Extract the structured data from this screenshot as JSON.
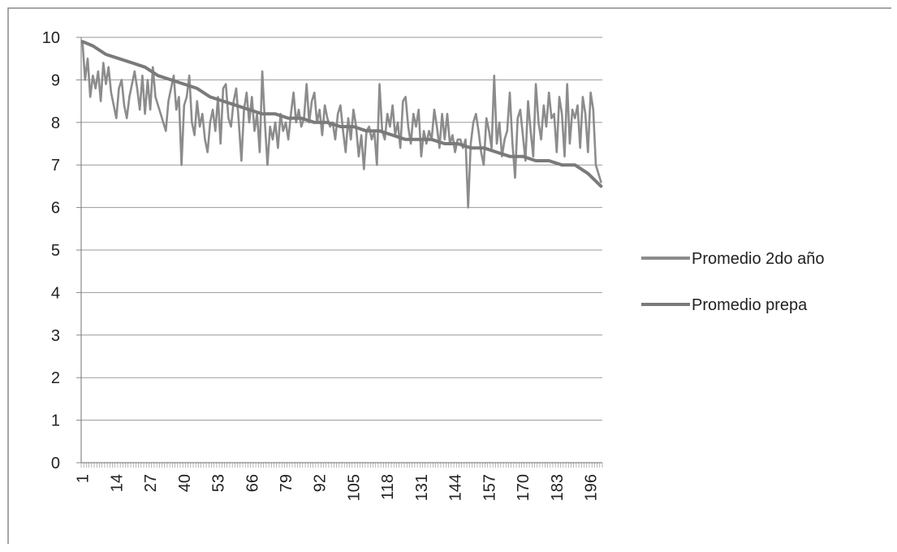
{
  "chart_data": {
    "type": "line",
    "title": "",
    "xlabel": "",
    "ylabel": "",
    "ylim": [
      0,
      10
    ],
    "y_ticks": [
      "0",
      "1",
      "2",
      "3",
      "4",
      "5",
      "6",
      "7",
      "8",
      "9",
      "10"
    ],
    "x_range": [
      1,
      200
    ],
    "x_tick_labels": [
      "1",
      "14",
      "27",
      "40",
      "53",
      "66",
      "79",
      "92",
      "105",
      "118",
      "131",
      "144",
      "157",
      "170",
      "183",
      "196"
    ],
    "grid": "horizontal",
    "legend_position": "right",
    "series": [
      {
        "name": "Promedio 2do año",
        "color": "#8c8c8c",
        "points": [
          [
            1,
            9.9
          ],
          [
            2,
            9.0
          ],
          [
            3,
            9.5
          ],
          [
            4,
            8.6
          ],
          [
            5,
            9.1
          ],
          [
            6,
            8.8
          ],
          [
            7,
            9.2
          ],
          [
            8,
            8.5
          ],
          [
            9,
            9.4
          ],
          [
            10,
            8.9
          ],
          [
            11,
            9.3
          ],
          [
            12,
            8.7
          ],
          [
            13,
            8.4
          ],
          [
            14,
            8.1
          ],
          [
            15,
            8.8
          ],
          [
            16,
            9.0
          ],
          [
            17,
            8.4
          ],
          [
            18,
            8.1
          ],
          [
            19,
            8.6
          ],
          [
            20,
            8.9
          ],
          [
            21,
            9.2
          ],
          [
            22,
            8.8
          ],
          [
            23,
            8.3
          ],
          [
            24,
            9.1
          ],
          [
            25,
            8.2
          ],
          [
            26,
            9.0
          ],
          [
            27,
            8.3
          ],
          [
            28,
            9.3
          ],
          [
            29,
            8.6
          ],
          [
            30,
            8.4
          ],
          [
            31,
            8.2
          ],
          [
            32,
            8.0
          ],
          [
            33,
            7.8
          ],
          [
            34,
            8.5
          ],
          [
            35,
            8.8
          ],
          [
            36,
            9.1
          ],
          [
            37,
            8.3
          ],
          [
            38,
            8.6
          ],
          [
            39,
            7.0
          ],
          [
            40,
            8.4
          ],
          [
            41,
            8.6
          ],
          [
            42,
            9.1
          ],
          [
            43,
            8.0
          ],
          [
            44,
            7.7
          ],
          [
            45,
            8.5
          ],
          [
            46,
            7.9
          ],
          [
            47,
            8.2
          ],
          [
            48,
            7.6
          ],
          [
            49,
            7.3
          ],
          [
            50,
            8.0
          ],
          [
            51,
            8.3
          ],
          [
            52,
            7.8
          ],
          [
            53,
            8.6
          ],
          [
            54,
            7.5
          ],
          [
            55,
            8.8
          ],
          [
            56,
            8.9
          ],
          [
            57,
            8.1
          ],
          [
            58,
            7.9
          ],
          [
            59,
            8.5
          ],
          [
            60,
            8.8
          ],
          [
            61,
            8.0
          ],
          [
            62,
            7.1
          ],
          [
            63,
            8.3
          ],
          [
            64,
            8.7
          ],
          [
            65,
            8.0
          ],
          [
            66,
            8.6
          ],
          [
            67,
            7.8
          ],
          [
            68,
            8.2
          ],
          [
            69,
            7.3
          ],
          [
            70,
            9.2
          ],
          [
            71,
            8.0
          ],
          [
            72,
            7.0
          ],
          [
            73,
            7.9
          ],
          [
            74,
            7.6
          ],
          [
            75,
            8.0
          ],
          [
            76,
            7.4
          ],
          [
            77,
            8.2
          ],
          [
            78,
            7.8
          ],
          [
            79,
            8.0
          ],
          [
            80,
            7.6
          ],
          [
            81,
            8.2
          ],
          [
            82,
            8.7
          ],
          [
            83,
            8.0
          ],
          [
            84,
            8.3
          ],
          [
            85,
            7.9
          ],
          [
            86,
            8.1
          ],
          [
            87,
            8.9
          ],
          [
            88,
            8.0
          ],
          [
            89,
            8.5
          ],
          [
            90,
            8.7
          ],
          [
            91,
            8.0
          ],
          [
            92,
            8.3
          ],
          [
            93,
            7.7
          ],
          [
            94,
            8.4
          ],
          [
            95,
            8.1
          ],
          [
            96,
            7.9
          ],
          [
            97,
            8.0
          ],
          [
            98,
            7.6
          ],
          [
            99,
            8.2
          ],
          [
            100,
            8.4
          ],
          [
            101,
            7.8
          ],
          [
            102,
            7.3
          ],
          [
            103,
            8.1
          ],
          [
            104,
            7.6
          ],
          [
            105,
            8.3
          ],
          [
            106,
            7.9
          ],
          [
            107,
            7.2
          ],
          [
            108,
            7.7
          ],
          [
            109,
            6.9
          ],
          [
            110,
            7.8
          ],
          [
            111,
            7.9
          ],
          [
            112,
            7.6
          ],
          [
            113,
            7.8
          ],
          [
            114,
            7.0
          ],
          [
            115,
            8.9
          ],
          [
            116,
            7.8
          ],
          [
            117,
            7.6
          ],
          [
            118,
            8.2
          ],
          [
            119,
            7.9
          ],
          [
            120,
            8.4
          ],
          [
            121,
            7.7
          ],
          [
            122,
            8.0
          ],
          [
            123,
            7.4
          ],
          [
            124,
            8.5
          ],
          [
            125,
            8.6
          ],
          [
            126,
            7.9
          ],
          [
            127,
            7.5
          ],
          [
            128,
            8.2
          ],
          [
            129,
            7.9
          ],
          [
            130,
            8.3
          ],
          [
            131,
            7.2
          ],
          [
            132,
            7.8
          ],
          [
            133,
            7.5
          ],
          [
            134,
            7.8
          ],
          [
            135,
            7.6
          ],
          [
            136,
            8.3
          ],
          [
            137,
            7.9
          ],
          [
            138,
            7.4
          ],
          [
            139,
            8.2
          ],
          [
            140,
            7.6
          ],
          [
            141,
            8.2
          ],
          [
            142,
            7.5
          ],
          [
            143,
            7.7
          ],
          [
            144,
            7.3
          ],
          [
            145,
            7.6
          ],
          [
            146,
            7.6
          ],
          [
            147,
            7.4
          ],
          [
            148,
            7.6
          ],
          [
            149,
            6.0
          ],
          [
            150,
            7.5
          ],
          [
            151,
            8.0
          ],
          [
            152,
            8.2
          ],
          [
            153,
            7.8
          ],
          [
            154,
            7.3
          ],
          [
            155,
            7.0
          ],
          [
            156,
            8.1
          ],
          [
            157,
            7.8
          ],
          [
            158,
            7.4
          ],
          [
            159,
            9.1
          ],
          [
            160,
            7.5
          ],
          [
            161,
            8.0
          ],
          [
            162,
            7.2
          ],
          [
            163,
            7.6
          ],
          [
            164,
            7.8
          ],
          [
            165,
            8.7
          ],
          [
            166,
            7.5
          ],
          [
            167,
            6.7
          ],
          [
            168,
            8.1
          ],
          [
            169,
            8.3
          ],
          [
            170,
            7.7
          ],
          [
            171,
            7.1
          ],
          [
            172,
            8.5
          ],
          [
            173,
            7.8
          ],
          [
            174,
            7.2
          ],
          [
            175,
            8.9
          ],
          [
            176,
            8.0
          ],
          [
            177,
            7.6
          ],
          [
            178,
            8.4
          ],
          [
            179,
            7.9
          ],
          [
            180,
            8.7
          ],
          [
            181,
            8.1
          ],
          [
            182,
            8.2
          ],
          [
            183,
            7.3
          ],
          [
            184,
            8.6
          ],
          [
            185,
            8.2
          ],
          [
            186,
            7.2
          ],
          [
            187,
            8.9
          ],
          [
            188,
            7.5
          ],
          [
            189,
            8.3
          ],
          [
            190,
            8.1
          ],
          [
            191,
            8.4
          ],
          [
            192,
            7.4
          ],
          [
            193,
            8.6
          ],
          [
            194,
            8.2
          ],
          [
            195,
            7.3
          ],
          [
            196,
            8.7
          ],
          [
            197,
            8.3
          ],
          [
            198,
            7.0
          ],
          [
            199,
            6.8
          ],
          [
            200,
            6.6
          ]
        ]
      },
      {
        "name": "Promedio prepa",
        "color": "#7a7a7a",
        "points": [
          [
            1,
            9.9
          ],
          [
            5,
            9.8
          ],
          [
            10,
            9.6
          ],
          [
            15,
            9.5
          ],
          [
            20,
            9.4
          ],
          [
            25,
            9.3
          ],
          [
            30,
            9.1
          ],
          [
            35,
            9.0
          ],
          [
            40,
            8.9
          ],
          [
            45,
            8.8
          ],
          [
            50,
            8.6
          ],
          [
            55,
            8.5
          ],
          [
            60,
            8.4
          ],
          [
            65,
            8.3
          ],
          [
            70,
            8.2
          ],
          [
            75,
            8.2
          ],
          [
            80,
            8.1
          ],
          [
            85,
            8.1
          ],
          [
            90,
            8.0
          ],
          [
            95,
            8.0
          ],
          [
            100,
            7.9
          ],
          [
            105,
            7.9
          ],
          [
            110,
            7.8
          ],
          [
            115,
            7.8
          ],
          [
            120,
            7.7
          ],
          [
            125,
            7.6
          ],
          [
            130,
            7.6
          ],
          [
            135,
            7.6
          ],
          [
            140,
            7.5
          ],
          [
            145,
            7.5
          ],
          [
            150,
            7.4
          ],
          [
            155,
            7.4
          ],
          [
            160,
            7.3
          ],
          [
            165,
            7.2
          ],
          [
            170,
            7.2
          ],
          [
            175,
            7.1
          ],
          [
            180,
            7.1
          ],
          [
            185,
            7.0
          ],
          [
            190,
            7.0
          ],
          [
            195,
            6.8
          ],
          [
            200,
            6.5
          ]
        ]
      }
    ]
  }
}
